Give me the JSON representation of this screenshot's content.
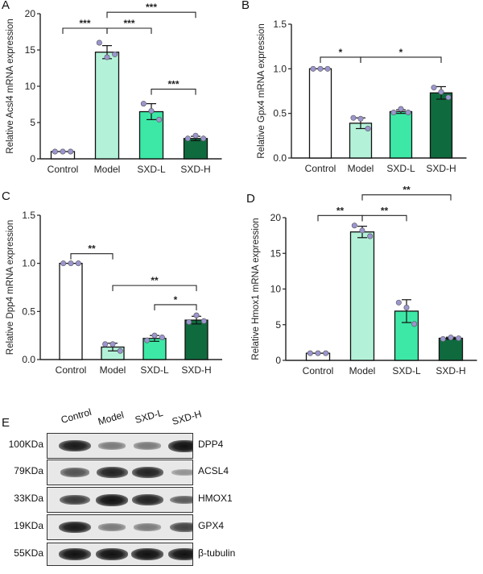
{
  "colors": {
    "Control": "#ffffff",
    "Model": "#b3f2d9",
    "SXD-L": "#3de8a6",
    "SXD-H": "#0f6b3e",
    "dot": "#9b95cf",
    "axis": "#222222"
  },
  "chart_data": [
    {
      "panel": "A",
      "type": "bar",
      "title": "",
      "xlabel": "",
      "ylabel": "Relative Acsl4 mRNA expression",
      "categories": [
        "Control",
        "Model",
        "SXD-L",
        "SXD-H"
      ],
      "values": [
        1.0,
        14.7,
        6.5,
        2.8
      ],
      "errors": [
        0.0,
        0.9,
        1.1,
        0.3
      ],
      "points": [
        [
          1.0,
          1.0,
          1.0
        ],
        [
          16.0,
          14.0,
          14.4
        ],
        [
          7.6,
          6.6,
          5.4
        ],
        [
          2.8,
          3.2,
          2.8
        ]
      ],
      "ylim": [
        0,
        20
      ],
      "yticks": [
        0,
        5,
        10,
        15,
        20
      ],
      "significance": [
        {
          "from": "Control",
          "to": "Model",
          "label": "***",
          "level": 18
        },
        {
          "from": "Model",
          "to": "SXD-L",
          "label": "***",
          "level": 18
        },
        {
          "from": "Model",
          "to": "SXD-H",
          "label": "***",
          "level": 20.2
        },
        {
          "from": "SXD-L",
          "to": "SXD-H",
          "label": "***",
          "level": 9.6
        }
      ]
    },
    {
      "panel": "B",
      "type": "bar",
      "title": "",
      "xlabel": "",
      "ylabel": "Relative Gpx4 mRNA expression",
      "categories": [
        "Control",
        "Model",
        "SXD-L",
        "SXD-H"
      ],
      "values": [
        1.0,
        0.39,
        0.52,
        0.73
      ],
      "errors": [
        0.0,
        0.06,
        0.02,
        0.07
      ],
      "points": [
        [
          1.0,
          1.0,
          1.0
        ],
        [
          0.45,
          0.44,
          0.33
        ],
        [
          0.51,
          0.55,
          0.51
        ],
        [
          0.79,
          0.74,
          0.68
        ]
      ],
      "ylim": [
        0,
        1.5
      ],
      "yticks": [
        "0.0",
        "0.5",
        "1.0",
        "1.5"
      ],
      "significance": [
        {
          "from": "Control",
          "to": "Model",
          "label": "*",
          "level": 1.13
        },
        {
          "from": "Model",
          "to": "SXD-H",
          "label": "*",
          "level": 1.13
        }
      ]
    },
    {
      "panel": "C",
      "type": "bar",
      "title": "",
      "xlabel": "",
      "ylabel": "Relative Dpp4 mRNA expression",
      "categories": [
        "Control",
        "Model",
        "SXD-L",
        "SXD-H"
      ],
      "values": [
        1.0,
        0.13,
        0.22,
        0.41
      ],
      "errors": [
        0.0,
        0.04,
        0.03,
        0.04
      ],
      "points": [
        [
          1.0,
          1.0,
          1.0
        ],
        [
          0.16,
          0.16,
          0.09
        ],
        [
          0.2,
          0.25,
          0.23
        ],
        [
          0.39,
          0.46,
          0.4
        ]
      ],
      "ylim": [
        0,
        1.5
      ],
      "yticks": [
        "0.0",
        "0.5",
        "1.0",
        "1.5"
      ],
      "significance": [
        {
          "from": "Control",
          "to": "Model",
          "label": "**",
          "level": 1.1
        },
        {
          "from": "Model",
          "to": "SXD-H",
          "label": "**",
          "level": 0.77
        },
        {
          "from": "SXD-L",
          "to": "SXD-H",
          "label": "*",
          "level": 0.57
        }
      ]
    },
    {
      "panel": "D",
      "type": "bar",
      "title": "",
      "xlabel": "",
      "ylabel": "Relative Hmox1 mRNA expression",
      "categories": [
        "Control",
        "Model",
        "SXD-L",
        "SXD-H"
      ],
      "values": [
        1.0,
        18.0,
        6.9,
        3.1
      ],
      "errors": [
        0.0,
        0.8,
        1.6,
        0.15
      ],
      "points": [
        [
          1.0,
          1.0,
          1.0
        ],
        [
          18.9,
          18.2,
          17.4
        ],
        [
          8.1,
          7.4,
          5.1
        ],
        [
          3.0,
          3.2,
          3.1
        ]
      ],
      "ylim": [
        0,
        20
      ],
      "yticks": [
        0,
        5,
        10,
        15,
        20
      ],
      "significance": [
        {
          "from": "Control",
          "to": "Model",
          "label": "**",
          "level": 20.3
        },
        {
          "from": "Model",
          "to": "SXD-L",
          "label": "**",
          "level": 20.3
        },
        {
          "from": "Model",
          "to": "SXD-H",
          "label": "**",
          "level": 23.2
        }
      ]
    }
  ],
  "western_blot": {
    "panel": "E",
    "lanes": [
      "Control",
      "Model",
      "SXD-L",
      "SXD-H"
    ],
    "rows": [
      {
        "protein": "DPP4",
        "kda": "100KDa",
        "intensity": [
          0.95,
          0.35,
          0.35,
          1.0
        ]
      },
      {
        "protein": "ACSL4",
        "kda": "79KDa",
        "intensity": [
          0.6,
          0.9,
          0.9,
          0.2
        ]
      },
      {
        "protein": "HMOX1",
        "kda": "33KDa",
        "intensity": [
          0.75,
          1.0,
          0.9,
          0.55
        ]
      },
      {
        "protein": "GPX4",
        "kda": "19KDa",
        "intensity": [
          0.95,
          0.35,
          0.35,
          0.7
        ]
      },
      {
        "protein": "β-tubulin",
        "kda": "55KDa",
        "intensity": [
          1.0,
          1.0,
          1.0,
          1.0
        ]
      }
    ]
  }
}
